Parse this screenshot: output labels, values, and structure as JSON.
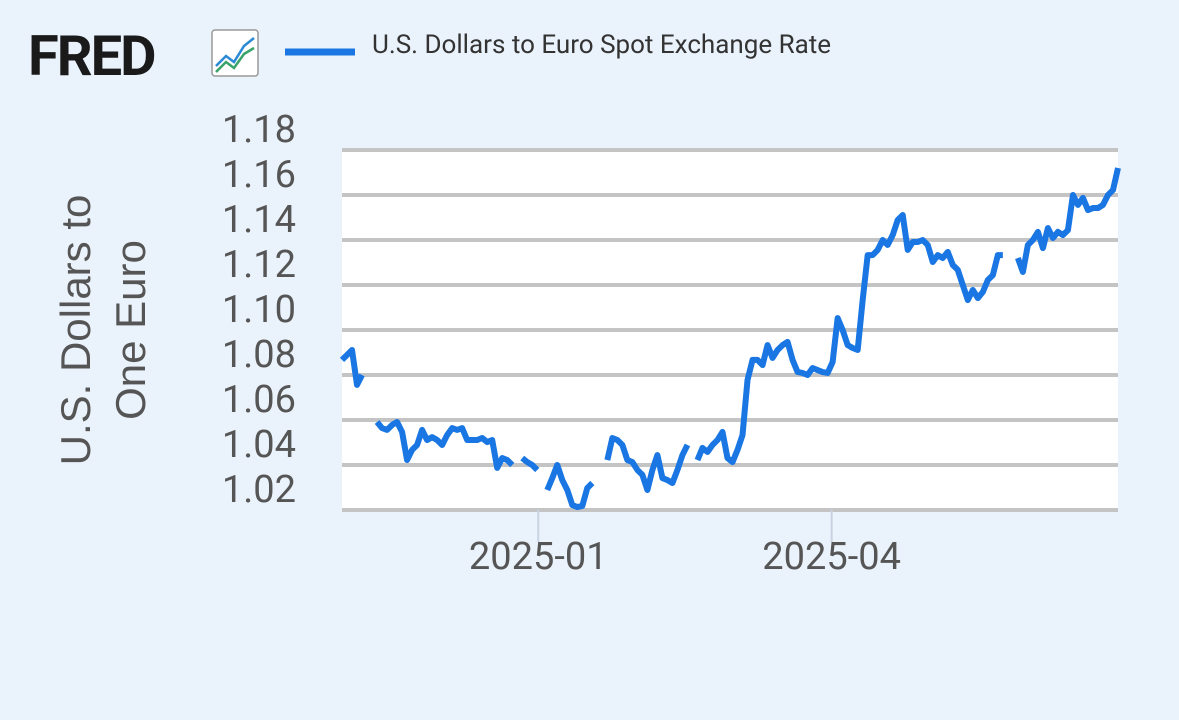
{
  "brand": "FRED",
  "chart_data": {
    "type": "line",
    "ylabel": "U.S. Dollars to One Euro",
    "ylim": [
      1.02,
      1.18
    ],
    "yticks": [
      1.02,
      1.04,
      1.06,
      1.08,
      1.1,
      1.12,
      1.14,
      1.16,
      1.18
    ],
    "ytick_labels": [
      "1.02",
      "1.04",
      "1.06",
      "1.08",
      "1.10",
      "1.12",
      "1.14",
      "1.16",
      "1.18"
    ],
    "xlim": [
      0,
      155
    ],
    "xticks": [
      {
        "value": 39.2,
        "label": "2025-01"
      },
      {
        "value": 97.8,
        "label": "2025-04"
      }
    ],
    "grid": true,
    "series": [
      {
        "name": "U.S. Dollars to Euro Spot Exchange Rate",
        "color": "#1976e2",
        "values": [
          1.0867,
          1.0889,
          1.0911,
          1.0756,
          1.08,
          null,
          null,
          1.0591,
          1.0564,
          1.0556,
          1.0578,
          1.0591,
          1.0547,
          1.0422,
          1.0467,
          1.0489,
          1.0556,
          1.0511,
          1.0524,
          1.0511,
          1.0489,
          1.0533,
          1.0564,
          1.0556,
          1.0564,
          1.0511,
          1.0511,
          1.0511,
          1.052,
          1.0502,
          1.0511,
          1.0387,
          1.0431,
          1.0422,
          1.04,
          null,
          1.0431,
          1.0413,
          1.04,
          1.0378,
          null,
          1.0289,
          1.0342,
          1.04,
          1.0333,
          1.0289,
          1.0222,
          1.0213,
          1.0218,
          1.0298,
          1.032,
          null,
          null,
          1.0422,
          1.052,
          1.0511,
          1.0489,
          1.0422,
          1.0413,
          1.0378,
          1.0356,
          1.0289,
          1.0378,
          1.0444,
          1.0342,
          1.0333,
          1.032,
          1.0378,
          1.0444,
          1.0489,
          null,
          1.0422,
          1.0476,
          1.0458,
          1.0489,
          1.0511,
          1.0547,
          1.0431,
          1.0413,
          1.0467,
          1.0533,
          1.0778,
          1.0867,
          1.0867,
          1.0844,
          1.0933,
          1.0876,
          1.0911,
          1.0933,
          1.0947,
          1.0867,
          1.0813,
          1.0809,
          1.08,
          1.0831,
          1.0822,
          1.0813,
          1.0809,
          1.0858,
          1.1053,
          1.1,
          1.0933,
          1.092,
          1.0911,
          1.1133,
          1.1333,
          1.1333,
          1.1356,
          1.14,
          1.1378,
          1.1422,
          1.1489,
          1.1511,
          1.1356,
          1.1391,
          1.1391,
          1.14,
          1.1378,
          1.1302,
          1.1333,
          1.132,
          1.1347,
          1.1289,
          1.1267,
          1.12,
          1.1133,
          1.1178,
          1.1142,
          1.1169,
          1.1222,
          1.1244,
          1.1333,
          1.1333,
          null,
          null,
          1.132,
          1.1258,
          1.1378,
          1.14,
          1.1436,
          1.1364,
          1.1453,
          1.1409,
          1.1436,
          1.1422,
          1.1444,
          1.16,
          1.1556,
          1.1587,
          1.1533,
          1.1542,
          1.1542,
          1.1556,
          1.16,
          1.1622,
          1.172
        ]
      }
    ]
  }
}
